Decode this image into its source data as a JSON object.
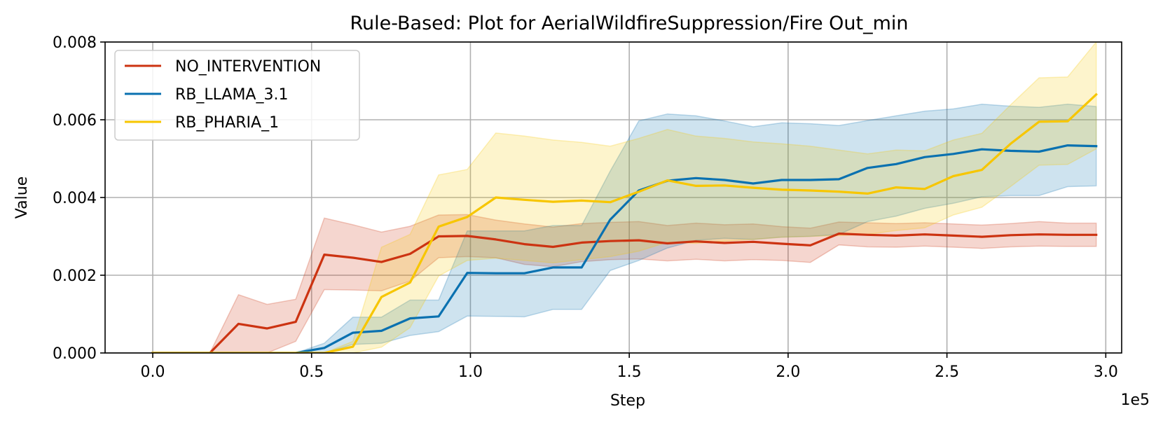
{
  "chart_data": {
    "type": "line",
    "title": "Rule-Based: Plot for AerialWildfireSuppression/Fire Out_min",
    "xlabel": "Step",
    "ylabel": "Value",
    "x_offset_label": "1e5",
    "xlim": [
      -0.15,
      3.05
    ],
    "ylim": [
      0,
      0.008
    ],
    "x_ticks": [
      0.0,
      0.5,
      1.0,
      1.5,
      2.0,
      2.5,
      3.0
    ],
    "x_tick_labels": [
      "0.0",
      "0.5",
      "1.0",
      "1.5",
      "2.0",
      "2.5",
      "3.0"
    ],
    "y_ticks": [
      0,
      0.002,
      0.004,
      0.006,
      0.008
    ],
    "y_tick_labels": [
      "0.000",
      "0.002",
      "0.004",
      "0.006",
      "0.008"
    ],
    "grid": true,
    "legend_position": "top-left",
    "series": [
      {
        "name": "NO_INTERVENTION",
        "color": "#cc3311",
        "x": [
          0,
          0.09,
          0.18,
          0.27,
          0.36,
          0.45,
          0.54,
          0.63,
          0.72,
          0.81,
          0.9,
          0.99,
          1.08,
          1.17,
          1.26,
          1.35,
          1.44,
          1.53,
          1.62,
          1.71,
          1.8,
          1.89,
          1.98,
          2.07,
          2.16,
          2.25,
          2.34,
          2.43,
          2.52,
          2.61,
          2.7,
          2.79,
          2.88,
          2.97
        ],
        "values": [
          0,
          0,
          0,
          0.00075,
          0.00063,
          0.0008,
          0.00253,
          0.00245,
          0.00234,
          0.00255,
          0.003,
          0.00301,
          0.00292,
          0.0028,
          0.00273,
          0.00284,
          0.00288,
          0.0029,
          0.00282,
          0.00287,
          0.00283,
          0.00286,
          0.00281,
          0.00277,
          0.00307,
          0.00304,
          0.00302,
          0.00305,
          0.00302,
          0.00299,
          0.00303,
          0.00305,
          0.00304,
          0.00304
        ],
        "lower": [
          0,
          0,
          0,
          0,
          0,
          0.0003,
          0.00163,
          0.00162,
          0.0016,
          0.00185,
          0.00245,
          0.00248,
          0.00245,
          0.00228,
          0.00222,
          0.00235,
          0.0024,
          0.00242,
          0.00237,
          0.00241,
          0.00237,
          0.0024,
          0.00238,
          0.00233,
          0.00278,
          0.00273,
          0.00272,
          0.00275,
          0.00272,
          0.00269,
          0.00273,
          0.00275,
          0.00274,
          0.00274
        ],
        "upper": [
          0,
          0,
          0,
          0.0015,
          0.00125,
          0.00138,
          0.00347,
          0.0033,
          0.00311,
          0.00326,
          0.00355,
          0.00356,
          0.00342,
          0.00332,
          0.00324,
          0.00333,
          0.00336,
          0.00338,
          0.00328,
          0.00334,
          0.0033,
          0.00332,
          0.00325,
          0.00321,
          0.00337,
          0.00335,
          0.00333,
          0.00335,
          0.00332,
          0.00329,
          0.00333,
          0.00338,
          0.00334,
          0.00334
        ]
      },
      {
        "name": "RB_LLAMA_3.1",
        "color": "#0a71b0",
        "x": [
          0,
          0.09,
          0.18,
          0.27,
          0.36,
          0.45,
          0.54,
          0.63,
          0.72,
          0.81,
          0.9,
          0.99,
          1.08,
          1.17,
          1.26,
          1.35,
          1.44,
          1.53,
          1.62,
          1.71,
          1.8,
          1.89,
          1.98,
          2.07,
          2.16,
          2.25,
          2.34,
          2.43,
          2.52,
          2.61,
          2.7,
          2.79,
          2.88,
          2.97
        ],
        "values": [
          0,
          0,
          0,
          0,
          0,
          0,
          0.00013,
          0.00052,
          0.00057,
          0.00089,
          0.00094,
          0.00206,
          0.00205,
          0.00205,
          0.0022,
          0.0022,
          0.00343,
          0.00418,
          0.00443,
          0.0045,
          0.00445,
          0.00436,
          0.00445,
          0.00445,
          0.00447,
          0.00476,
          0.00486,
          0.00504,
          0.00512,
          0.00524,
          0.0052,
          0.00518,
          0.00534,
          0.00532
        ],
        "lower": [
          0,
          0,
          0,
          0,
          0,
          0,
          0,
          0.00022,
          0.00025,
          0.00045,
          0.00055,
          0.00095,
          0.00094,
          0.00093,
          0.00112,
          0.00112,
          0.00212,
          0.00238,
          0.0027,
          0.0029,
          0.00295,
          0.00292,
          0.00298,
          0.003,
          0.00305,
          0.00338,
          0.00352,
          0.00372,
          0.00385,
          0.00402,
          0.00405,
          0.00405,
          0.00428,
          0.0043
        ],
        "upper": [
          0,
          0,
          0,
          0,
          0,
          0,
          0.00025,
          0.00092,
          0.00092,
          0.00136,
          0.00136,
          0.00314,
          0.00314,
          0.00314,
          0.00328,
          0.00328,
          0.00468,
          0.00597,
          0.00615,
          0.0061,
          0.00597,
          0.00582,
          0.00592,
          0.0059,
          0.00585,
          0.00598,
          0.0061,
          0.00622,
          0.00628,
          0.0064,
          0.00635,
          0.00632,
          0.0064,
          0.00634
        ]
      },
      {
        "name": "RB_PHARIA_1",
        "color": "#f7c600",
        "x": [
          0,
          0.09,
          0.18,
          0.27,
          0.36,
          0.45,
          0.54,
          0.63,
          0.72,
          0.81,
          0.9,
          0.99,
          1.08,
          1.17,
          1.26,
          1.35,
          1.44,
          1.53,
          1.62,
          1.71,
          1.8,
          1.89,
          1.98,
          2.07,
          2.16,
          2.25,
          2.34,
          2.43,
          2.52,
          2.61,
          2.7,
          2.79,
          2.88,
          2.97
        ],
        "values": [
          0,
          0,
          0,
          0,
          0,
          0,
          0,
          0.00016,
          0.00144,
          0.00181,
          0.00325,
          0.0035,
          0.004,
          0.00394,
          0.00389,
          0.00392,
          0.00388,
          0.00415,
          0.00444,
          0.0043,
          0.00431,
          0.00425,
          0.0042,
          0.00418,
          0.00415,
          0.0041,
          0.00426,
          0.00422,
          0.00455,
          0.00471,
          0.00538,
          0.00595,
          0.00596,
          0.00665
        ],
        "lower": [
          0,
          0,
          0,
          0,
          0,
          0,
          0,
          0,
          0.00015,
          0.00065,
          0.00198,
          0.00238,
          0.00244,
          0.00238,
          0.00232,
          0.0024,
          0.00248,
          0.00262,
          0.00285,
          0.00282,
          0.00288,
          0.00292,
          0.00298,
          0.003,
          0.00302,
          0.00305,
          0.00315,
          0.00322,
          0.00355,
          0.00375,
          0.00428,
          0.00483,
          0.00485,
          0.00525
        ],
        "upper": [
          0,
          0,
          0,
          0,
          0,
          0,
          0,
          0.0003,
          0.00272,
          0.00305,
          0.00458,
          0.00472,
          0.00566,
          0.00558,
          0.00548,
          0.00542,
          0.00532,
          0.00552,
          0.00575,
          0.00558,
          0.00552,
          0.00543,
          0.00538,
          0.00532,
          0.00522,
          0.00512,
          0.00522,
          0.0052,
          0.00548,
          0.00565,
          0.00638,
          0.00708,
          0.0071,
          0.008
        ]
      }
    ]
  }
}
